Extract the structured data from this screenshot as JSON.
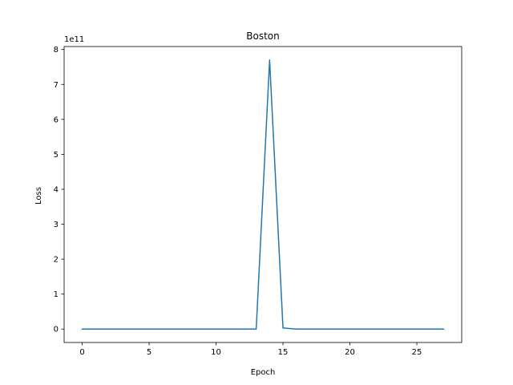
{
  "chart_data": {
    "type": "line",
    "title": "Boston",
    "xlabel": "Epoch",
    "ylabel": "Loss",
    "y_offset_text": "1e11",
    "xlim": [
      -1.35,
      28.35
    ],
    "ylim": [
      -0.385,
      8.085
    ],
    "y_scale_factor": 100000000000,
    "xticks": [
      0,
      5,
      10,
      15,
      20,
      25
    ],
    "xtick_labels": [
      "0",
      "5",
      "10",
      "15",
      "20",
      "25"
    ],
    "yticks": [
      0,
      1,
      2,
      3,
      4,
      5,
      6,
      7,
      8
    ],
    "ytick_labels": [
      "0",
      "1",
      "2",
      "3",
      "4",
      "5",
      "6",
      "7",
      "8"
    ],
    "grid": false,
    "series": [
      {
        "color": "#1f77b4",
        "x": [
          0,
          1,
          2,
          3,
          4,
          5,
          6,
          7,
          8,
          9,
          10,
          11,
          12,
          13,
          14,
          15,
          16,
          17,
          18,
          19,
          20,
          21,
          22,
          23,
          24,
          25,
          26,
          27
        ],
        "y": [
          0,
          0,
          0,
          0,
          0,
          0,
          0,
          0,
          0,
          0,
          0,
          0,
          0,
          0,
          7.7,
          0.03,
          0,
          0,
          0,
          0,
          0,
          0,
          0,
          0,
          0,
          0,
          0,
          0
        ]
      }
    ]
  }
}
